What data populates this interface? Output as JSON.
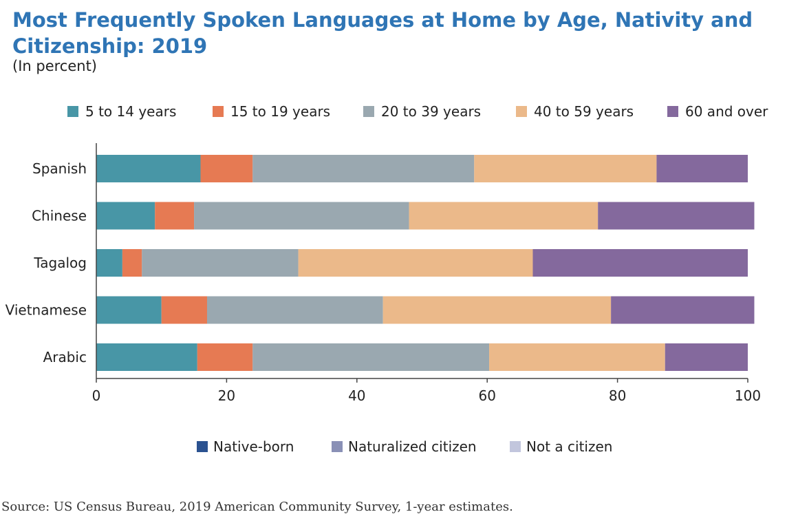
{
  "chart_data": {
    "type": "bar",
    "orientation": "horizontal",
    "stacked": true,
    "title": "Most Frequently Spoken Languages at Home by Age, Nativity and Citizenship: 2019",
    "subtitle": "(In percent)",
    "categories": [
      "Spanish",
      "Chinese",
      "Tagalog",
      "Vietnamese",
      "Arabic"
    ],
    "series": [
      {
        "name": "5 to 14 years",
        "color": "#4896a6",
        "values": [
          16,
          9,
          4,
          10,
          15.5
        ]
      },
      {
        "name": "15 to 19 years",
        "color": "#e67a53",
        "values": [
          8,
          6,
          3,
          7,
          8.5
        ]
      },
      {
        "name": "20 to 39 years",
        "color": "#9aa8b0",
        "values": [
          34,
          33,
          24,
          27,
          36.3
        ]
      },
      {
        "name": "40 to 59 years",
        "color": "#ebb98a",
        "values": [
          28,
          29,
          36,
          35,
          27
        ]
      },
      {
        "name": "60 and over",
        "color": "#84699d",
        "values": [
          14,
          24,
          33,
          22,
          12.7
        ]
      }
    ],
    "secondary_legend": [
      {
        "name": "Native-born",
        "color": "#2b5290"
      },
      {
        "name": "Naturalized citizen",
        "color": "#8a90b6"
      },
      {
        "name": "Not a citizen",
        "color": "#c2c6dd"
      }
    ],
    "xlim": [
      0,
      100
    ],
    "xticks": [
      "0",
      "20",
      "40",
      "60",
      "80",
      "100"
    ],
    "legend_position": "top",
    "grid": false
  },
  "source": "Source: US Census Bureau, 2019 American Community Survey, 1-year estimates."
}
